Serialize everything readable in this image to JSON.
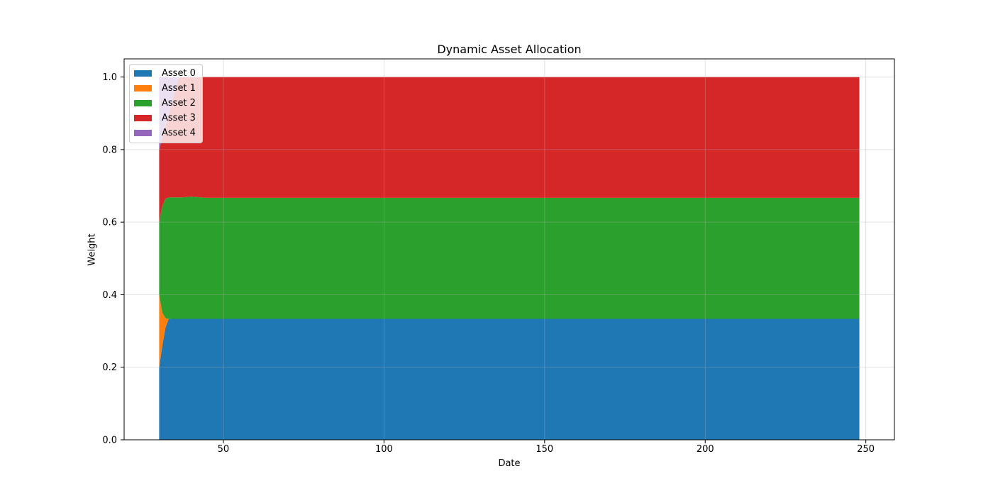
{
  "chart_data": {
    "type": "area",
    "stacked": true,
    "title": "Dynamic Asset Allocation",
    "xlabel": "Date",
    "ylabel": "Weight",
    "xlim": [
      19.1,
      258.9
    ],
    "ylim": [
      0,
      1.05
    ],
    "xticks": [
      50,
      100,
      150,
      200,
      250
    ],
    "xtick_labels": [
      "50",
      "100",
      "150",
      "200",
      "250"
    ],
    "yticks": [
      0.0,
      0.2,
      0.4,
      0.6,
      0.8,
      1.0
    ],
    "ytick_labels": [
      "0.0",
      "0.2",
      "0.4",
      "0.6",
      "0.8",
      "1.0"
    ],
    "grid": true,
    "grid_color": "#b0b0b0",
    "grid_opacity": 0.35,
    "legend_position": "upper left",
    "x": [
      30,
      31,
      32,
      33,
      34,
      35,
      36,
      37,
      40,
      45,
      50,
      75,
      100,
      125,
      150,
      175,
      200,
      225,
      248
    ],
    "series": [
      {
        "name": "Asset 0",
        "color": "#1f77b4",
        "values": [
          0.2,
          0.26,
          0.31,
          0.333,
          0.3333,
          0.3333,
          0.3333,
          0.3333,
          0.3333,
          0.3333,
          0.3333,
          0.3333,
          0.3333,
          0.3333,
          0.3333,
          0.3333,
          0.3333,
          0.3333,
          0.3333
        ]
      },
      {
        "name": "Asset 1",
        "color": "#ff7f0e",
        "values": [
          0.2,
          0.09,
          0.025,
          0,
          0,
          0,
          0,
          0,
          0,
          0,
          0,
          0,
          0,
          0,
          0,
          0,
          0,
          0,
          0
        ]
      },
      {
        "name": "Asset 2",
        "color": "#2ca02c",
        "values": [
          0.2,
          0.295,
          0.33,
          0.335,
          0.335,
          0.335,
          0.335,
          0.335,
          0.3367,
          0.3337,
          0.3337,
          0.3337,
          0.3337,
          0.3337,
          0.3337,
          0.3337,
          0.3337,
          0.3337,
          0.3337
        ]
      },
      {
        "name": "Asset 3",
        "color": "#d62728",
        "values": [
          0.2,
          0.185,
          0.2,
          0.232,
          0.2617,
          0.2967,
          0.3267,
          0.3317,
          0.33,
          0.333,
          0.333,
          0.333,
          0.333,
          0.333,
          0.333,
          0.333,
          0.333,
          0.333,
          0.333
        ]
      },
      {
        "name": "Asset 4",
        "color": "#9467bd",
        "values": [
          0.2,
          0.17,
          0.135,
          0.1,
          0.07,
          0.035,
          0.005,
          0,
          0,
          0,
          0,
          0,
          0,
          0,
          0,
          0,
          0,
          0,
          0
        ]
      }
    ]
  }
}
